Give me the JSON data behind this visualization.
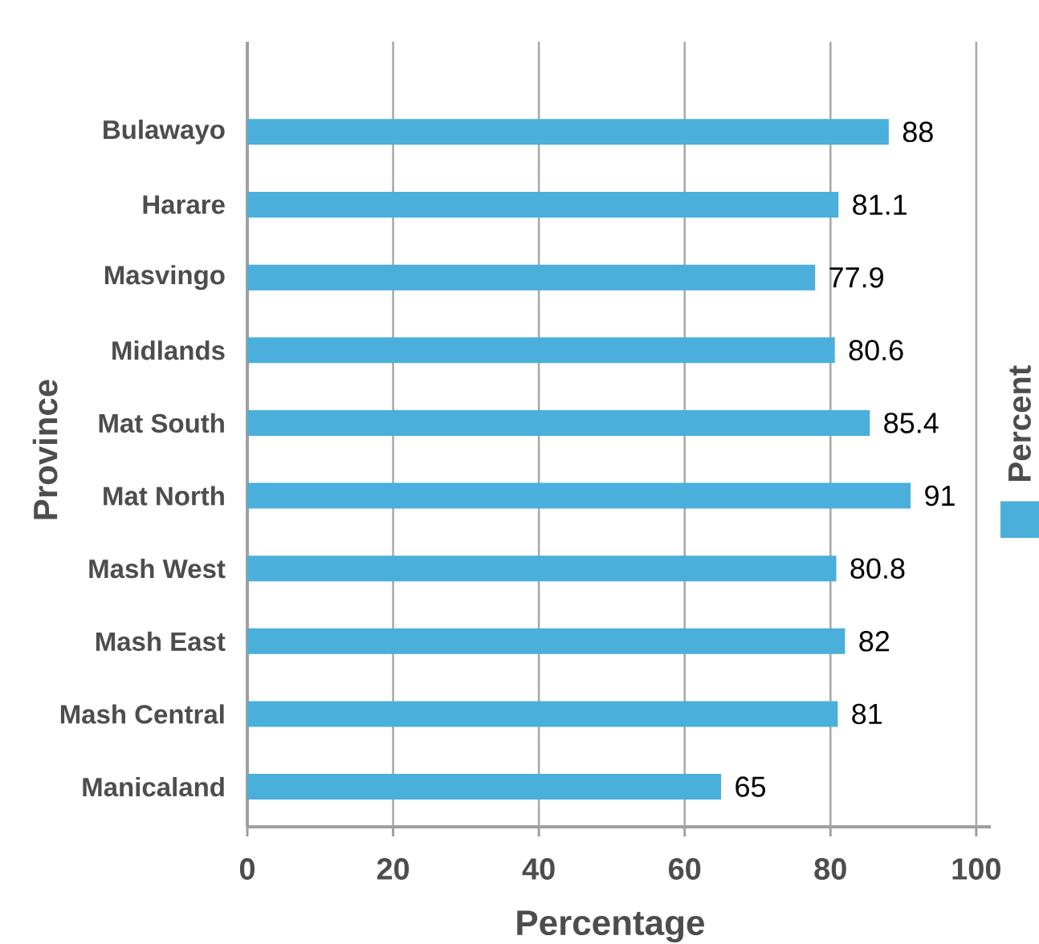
{
  "chart_data": {
    "type": "bar",
    "orientation": "horizontal",
    "xlabel": "Percentage",
    "ylabel": "Province",
    "categories": [
      "Bulawayo",
      "Harare",
      "Masvingo",
      "Midlands",
      "Mat South",
      "Mat North",
      "Mash West",
      "Mash East",
      "Mash Central",
      "Manicaland"
    ],
    "series": [
      {
        "name": "Percent",
        "color": "#4aafda",
        "values": [
          88,
          81.1,
          77.9,
          80.6,
          85.4,
          91,
          80.8,
          82,
          81,
          65
        ]
      }
    ],
    "xlim": [
      0,
      102
    ],
    "xticks": [
      0,
      20,
      40,
      60,
      80,
      100
    ],
    "grid": "x",
    "legend": "right",
    "data_labels": true
  }
}
